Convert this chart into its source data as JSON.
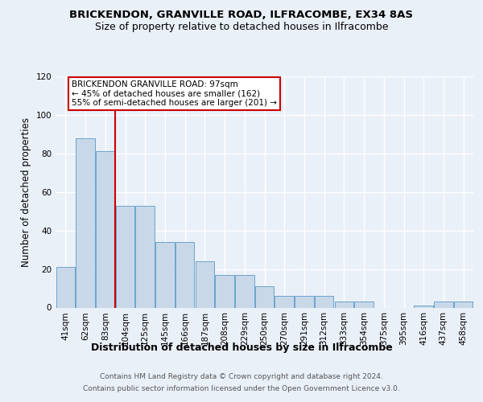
{
  "title_line1": "BRICKENDON, GRANVILLE ROAD, ILFRACOMBE, EX34 8AS",
  "title_line2": "Size of property relative to detached houses in Ilfracombe",
  "xlabel": "Distribution of detached houses by size in Ilfracombe",
  "ylabel": "Number of detached properties",
  "footnote1": "Contains HM Land Registry data © Crown copyright and database right 2024.",
  "footnote2": "Contains public sector information licensed under the Open Government Licence v3.0.",
  "bins": [
    "41sqm",
    "62sqm",
    "83sqm",
    "104sqm",
    "125sqm",
    "145sqm",
    "166sqm",
    "187sqm",
    "208sqm",
    "229sqm",
    "250sqm",
    "270sqm",
    "291sqm",
    "312sqm",
    "333sqm",
    "354sqm",
    "375sqm",
    "395sqm",
    "416sqm",
    "437sqm",
    "458sqm"
  ],
  "values": [
    21,
    88,
    81,
    53,
    53,
    34,
    34,
    24,
    17,
    17,
    11,
    6,
    6,
    6,
    3,
    3,
    0,
    0,
    1,
    3,
    3
  ],
  "bar_color": "#c8d8e8",
  "bar_edge_color": "#5a9ac8",
  "vline_pos": 2.5,
  "vline_color": "#cc0000",
  "annotation_text": "BRICKENDON GRANVILLE ROAD: 97sqm\n← 45% of detached houses are smaller (162)\n55% of semi-detached houses are larger (201) →",
  "annotation_box_color": "#ffffff",
  "annotation_box_edge": "#cc0000",
  "ylim": [
    0,
    120
  ],
  "yticks": [
    0,
    20,
    40,
    60,
    80,
    100,
    120
  ],
  "bg_color": "#eaf0f8",
  "plot_bg_color": "#eaf0f8",
  "grid_color": "#ffffff",
  "title_fontsize": 9.5,
  "subtitle_fontsize": 9,
  "xlabel_fontsize": 9,
  "ylabel_fontsize": 8.5,
  "tick_fontsize": 7.5,
  "annotation_fontsize": 7.5,
  "footnote_fontsize": 6.5
}
